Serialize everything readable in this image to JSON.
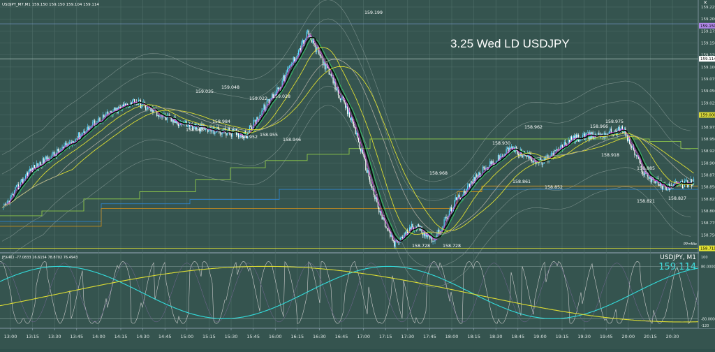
{
  "header": {
    "symbol_line": "USDJPY_M7,M1  159.150 159.150 159.104 159.114"
  },
  "main": {
    "title": "3.25 Wed LD USDJPY"
  },
  "price_axis": {
    "labels": [
      "159.225",
      "159.200",
      "159.175",
      "159.150",
      "159.125",
      "159.100",
      "159.075",
      "159.050",
      "159.025",
      "159.000",
      "158.975",
      "158.950",
      "158.925",
      "158.900",
      "158.875",
      "158.850",
      "158.825",
      "158.800",
      "158.775",
      "158.750",
      "158.725"
    ],
    "markers": {
      "top": "159.150",
      "bid": "159.114",
      "mid": "159.000",
      "bottom": "158.715",
      "pivot": "PP=Mix"
    }
  },
  "annotations": [
    {
      "text": "159.199"
    },
    {
      "text": "159.035"
    },
    {
      "text": "159.048"
    },
    {
      "text": "159.022"
    },
    {
      "text": "159.028"
    },
    {
      "text": "158.984"
    },
    {
      "text": "158.966"
    },
    {
      "text": "158.952"
    },
    {
      "text": "158.955"
    },
    {
      "text": "158.946"
    },
    {
      "text": "158.968"
    },
    {
      "text": "158.930"
    },
    {
      "text": "158.962"
    },
    {
      "text": "158.966"
    },
    {
      "text": "158.975"
    },
    {
      "text": "158.918"
    },
    {
      "text": "158.861"
    },
    {
      "text": "158.852"
    },
    {
      "text": "158.885"
    },
    {
      "text": "158.821"
    },
    {
      "text": "158.827"
    },
    {
      "text": "158.728"
    },
    {
      "text": "158.728"
    }
  ],
  "indicator": {
    "header": "JFX-RCI -77.0833 16.6154 78.8702 76.4943",
    "symbol": "USDJPY, M1",
    "price": "159.114",
    "levels": [
      "80.0000",
      "-80.0000"
    ],
    "axis_top": "100",
    "axis_bottom": "-120"
  },
  "time_axis": {
    "labels": [
      "13:00",
      "13:15",
      "13:30",
      "13:45",
      "14:00",
      "14:15",
      "14:30",
      "14:45",
      "15:00",
      "15:15",
      "15:30",
      "15:45",
      "16:00",
      "16:15",
      "16:30",
      "16:45",
      "17:00",
      "17:15",
      "17:30",
      "17:45",
      "18:00",
      "18:15",
      "18:30",
      "18:45",
      "19:00",
      "19:15",
      "19:30",
      "19:45",
      "20:00",
      "20:15",
      "20:30"
    ]
  },
  "colors": {
    "background": "#35544f",
    "bull_candle": "#5fd6ff",
    "bear_candle": "#ffffff",
    "price_line": "#000000",
    "ma_fast": "#cc33cc",
    "ma_green": "#33cc66",
    "ma_yellow": "#dddd33",
    "rci_cyan": "#33dddd",
    "rci_yellow": "#dddd33",
    "rci_white": "#cccccc"
  }
}
